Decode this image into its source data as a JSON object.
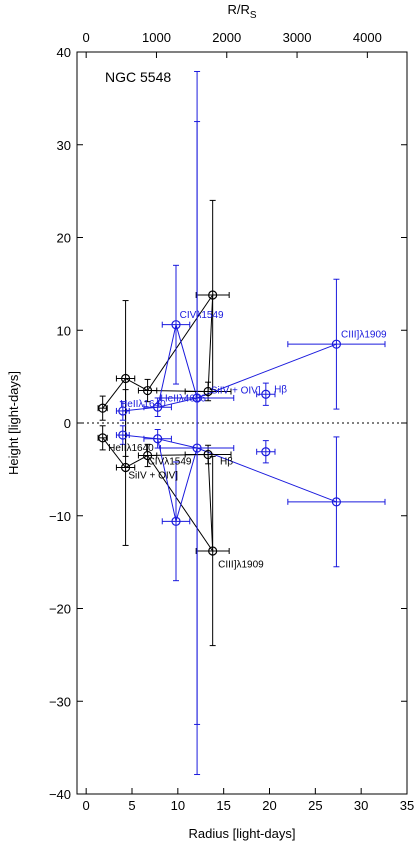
{
  "chart_data": {
    "type": "scatter",
    "annotation": "NGC 5548",
    "xlabel": "Radius  [light-days]",
    "ylabel": "Height  [light-days]",
    "top_axis_label_main": "R/R",
    "top_axis_label_sub": "S",
    "xlim": [
      -1,
      35
    ],
    "ylim": [
      -40,
      40
    ],
    "x_ticks": [
      0,
      5,
      10,
      15,
      20,
      25,
      30,
      35
    ],
    "y_ticks": [
      -40,
      -30,
      -20,
      -10,
      0,
      10,
      20,
      30,
      40
    ],
    "top_ticks": [
      0,
      1000,
      2000,
      3000,
      4000
    ],
    "top_scale_rs_per_lightday": 130.4,
    "grid": false,
    "zero_line": true,
    "series": [
      {
        "color": "#000000",
        "points": [
          {
            "x": 1.8,
            "y": 1.6,
            "xerr": 0.5,
            "yerr": 1.3
          },
          {
            "x": 4.3,
            "y": 4.8,
            "xerr": 1.0,
            "yerr": 8.4
          },
          {
            "x": 6.7,
            "y": 3.5,
            "xerr": 1.0,
            "yerr": 1.2
          },
          {
            "x": 13.8,
            "y": 13.8,
            "xerr": 1.8,
            "yerr": 10.2
          },
          {
            "x": 13.3,
            "y": 3.4,
            "xerr": 2.5,
            "yerr": 1.0
          },
          {
            "x": 1.8,
            "y": -1.6,
            "xerr": 0.5,
            "yerr": 1.3
          },
          {
            "x": 4.3,
            "y": -4.8,
            "xerr": 1.0,
            "yerr": 8.4
          },
          {
            "x": 6.7,
            "y": -3.5,
            "xerr": 1.0,
            "yerr": 1.2
          },
          {
            "x": 13.8,
            "y": -13.8,
            "xerr": 1.8,
            "yerr": 10.2
          },
          {
            "x": 13.3,
            "y": -3.4,
            "xerr": 2.5,
            "yerr": 1.0
          }
        ],
        "paths": [
          [
            0,
            1,
            2,
            4,
            3,
            2
          ],
          [
            5,
            6,
            7,
            9,
            8,
            7
          ]
        ]
      },
      {
        "color": "#1a1add",
        "points": [
          {
            "x": 4.0,
            "y": 1.3,
            "xerr": 0.7,
            "yerr": 1.0
          },
          {
            "x": 7.8,
            "y": 1.7,
            "xerr": 1.5,
            "yerr": 1.0
          },
          {
            "x": 9.8,
            "y": 10.6,
            "xerr": 1.5,
            "yerr": 6.4
          },
          {
            "x": 12.1,
            "y": 2.7,
            "xerr": 4.0,
            "yerr": 35.2
          },
          {
            "x": 19.6,
            "y": 3.1,
            "xerr": 1.0,
            "yerr": 1.2
          },
          {
            "x": 27.3,
            "y": 8.5,
            "xerr": 5.3,
            "yerr": 7.0
          },
          {
            "x": 4.0,
            "y": -1.3,
            "xerr": 0.7,
            "yerr": 1.0
          },
          {
            "x": 7.8,
            "y": -1.7,
            "xerr": 1.5,
            "yerr": 1.0
          },
          {
            "x": 9.8,
            "y": -10.6,
            "xerr": 1.5,
            "yerr": 6.4
          },
          {
            "x": 12.1,
            "y": -2.7,
            "xerr": 4.0,
            "yerr": 35.2
          },
          {
            "x": 19.6,
            "y": -3.1,
            "xerr": 1.0,
            "yerr": 1.2
          },
          {
            "x": 27.3,
            "y": -8.5,
            "xerr": 5.3,
            "yerr": 7.0
          }
        ],
        "paths": [
          [
            0,
            1,
            2,
            3,
            1
          ],
          [
            3,
            5
          ],
          [
            6,
            7,
            8,
            9,
            7
          ],
          [
            9,
            11
          ]
        ]
      }
    ],
    "labels": [
      {
        "text": "CIVλ1549",
        "x": 10.2,
        "y": 11.3,
        "color": "#1a1add"
      },
      {
        "text": "CIII]λ1909",
        "x": 27.8,
        "y": 9.2,
        "color": "#1a1add"
      },
      {
        "text": "SiIV + OIV]",
        "x": 13.6,
        "y": 3.2,
        "color": "#1a1add"
      },
      {
        "text": "Hβ",
        "x": 20.5,
        "y": 3.3,
        "color": "#1a1add"
      },
      {
        "text": "HeIIλ1640",
        "x": 3.7,
        "y": 1.7,
        "color": "#1a1add"
      },
      {
        "text": "HeIIλ4686",
        "x": 8.1,
        "y": 2.3,
        "color": "#1a1add"
      },
      {
        "text": "HeIIλ1640",
        "x": 2.4,
        "y": -3.0,
        "color": "#000000"
      },
      {
        "text": "CIVλ1549",
        "x": 6.7,
        "y": -4.5,
        "color": "#000000"
      },
      {
        "text": "Hβ",
        "x": 14.6,
        "y": -4.5,
        "color": "#000000"
      },
      {
        "text": "SiIV + OIV]",
        "x": 4.6,
        "y": -6.0,
        "color": "#000000"
      },
      {
        "text": "CIII]λ1909",
        "x": 14.4,
        "y": -15.6,
        "color": "#000000"
      }
    ]
  }
}
